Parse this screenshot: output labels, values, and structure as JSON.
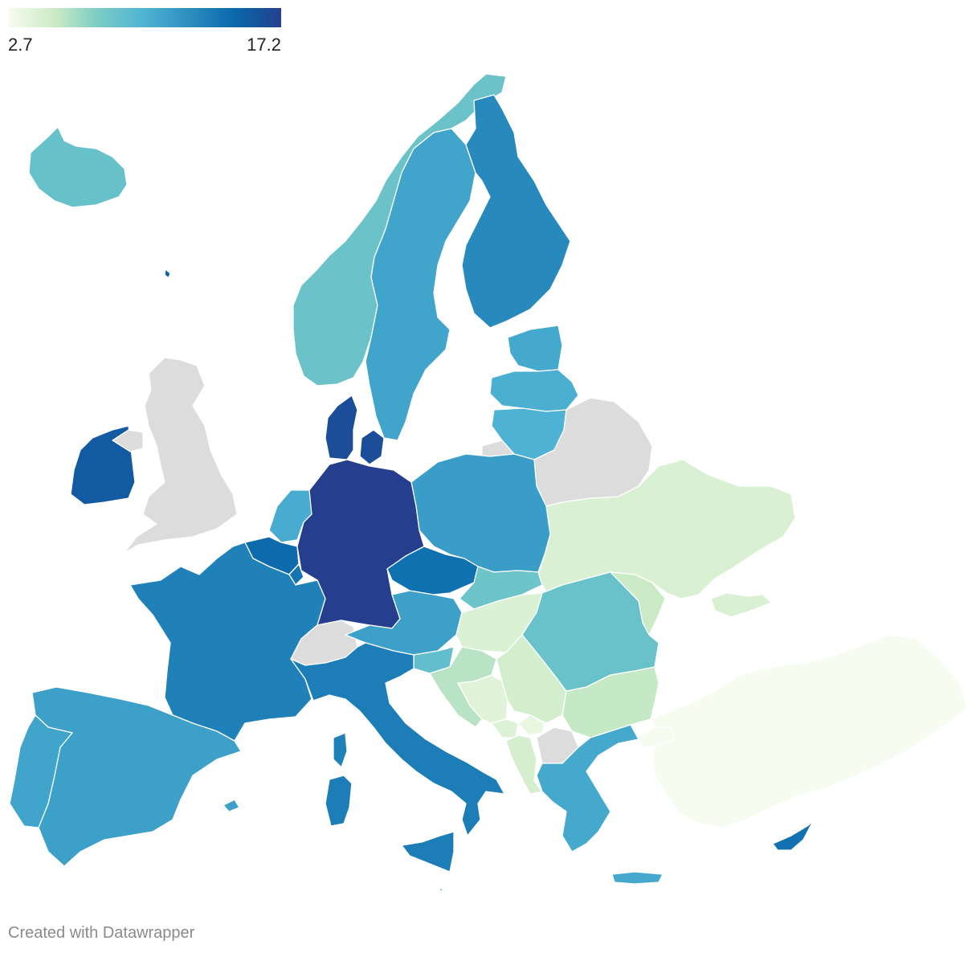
{
  "legend": {
    "min_label": "2.7",
    "max_label": "17.2",
    "min": 2.7,
    "max": 17.2,
    "colors": [
      "#f7fcf0",
      "#ccebc5",
      "#7bccc4",
      "#4eb3d3",
      "#2b8cbe",
      "#0868ac",
      "#253f8e"
    ]
  },
  "no_data_color": "#dcdcdc",
  "credit": "Created with Datawrapper",
  "regions": [
    {
      "id": "iceland",
      "value": 8.6
    },
    {
      "id": "norway",
      "value": 8.4
    },
    {
      "id": "sweden",
      "value": 10.9
    },
    {
      "id": "finland",
      "value": 12.6
    },
    {
      "id": "estonia",
      "value": 10.6
    },
    {
      "id": "latvia",
      "value": 10.2
    },
    {
      "id": "lithuania",
      "value": 10.0
    },
    {
      "id": "belarus",
      "value": null
    },
    {
      "id": "ukraine",
      "value": 4.4
    },
    {
      "id": "moldova",
      "value": 5.2
    },
    {
      "id": "russia-kaliningrad",
      "value": null
    },
    {
      "id": "poland",
      "value": 11.3
    },
    {
      "id": "denmark",
      "value": 16.4
    },
    {
      "id": "germany",
      "value": 17.2
    },
    {
      "id": "netherlands",
      "value": 10.4
    },
    {
      "id": "belgium",
      "value": 14.6
    },
    {
      "id": "luxembourg",
      "value": 13.9
    },
    {
      "id": "ireland",
      "value": 15.6
    },
    {
      "id": "united-kingdom",
      "value": null
    },
    {
      "id": "northern-ireland",
      "value": null
    },
    {
      "id": "france",
      "value": 13.1
    },
    {
      "id": "spain",
      "value": 11.1
    },
    {
      "id": "portugal",
      "value": 10.9
    },
    {
      "id": "switzerland",
      "value": null
    },
    {
      "id": "italy",
      "value": 13.3
    },
    {
      "id": "sardinia",
      "value": 13.3
    },
    {
      "id": "corsica",
      "value": 13.1
    },
    {
      "id": "sicily",
      "value": 13.3
    },
    {
      "id": "austria",
      "value": 11.1
    },
    {
      "id": "czechia",
      "value": 14.2
    },
    {
      "id": "slovakia",
      "value": 8.3
    },
    {
      "id": "hungary",
      "value": 4.3
    },
    {
      "id": "slovenia",
      "value": 8.9
    },
    {
      "id": "croatia",
      "value": 5.7
    },
    {
      "id": "bosnia",
      "value": 4.0
    },
    {
      "id": "serbia",
      "value": 4.7
    },
    {
      "id": "montenegro",
      "value": 4.2
    },
    {
      "id": "kosovo",
      "value": 3.5
    },
    {
      "id": "albania",
      "value": 4.6
    },
    {
      "id": "north-macedonia",
      "value": null
    },
    {
      "id": "romania",
      "value": 8.5
    },
    {
      "id": "bulgaria",
      "value": 5.3
    },
    {
      "id": "greece",
      "value": 10.6
    },
    {
      "id": "crete",
      "value": 10.6
    },
    {
      "id": "turkey",
      "value": 2.7
    },
    {
      "id": "cyprus",
      "value": 14.1
    },
    {
      "id": "malta",
      "value": 10.8
    },
    {
      "id": "balearics",
      "value": 11.1
    },
    {
      "id": "faroe",
      "value": 15.0
    }
  ]
}
